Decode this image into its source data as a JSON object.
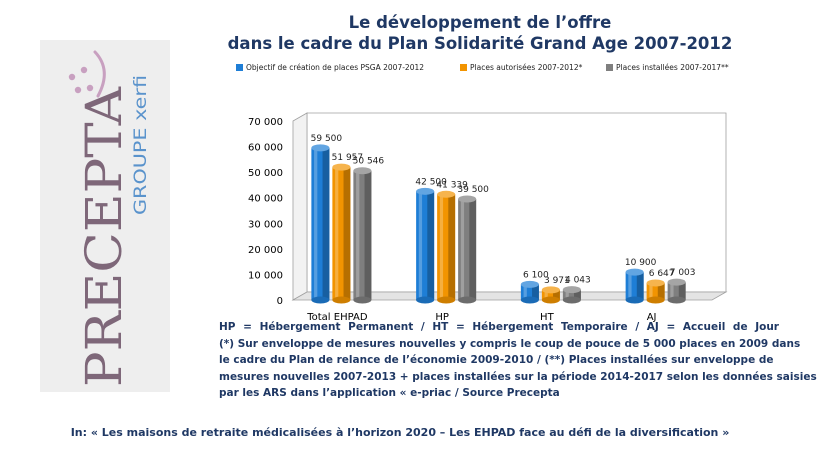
{
  "logo": {
    "brand_text": "PRECEPTA",
    "group_text": "GROUPE xerfi"
  },
  "title_lines": [
    "Le développement de l’offre",
    "dans le cadre du Plan Solidarité Grand Age 2007-2012"
  ],
  "chart_data": {
    "type": "bar",
    "categories": [
      "Total EHPAD",
      "HP",
      "HT",
      "AJ"
    ],
    "series": [
      {
        "name": "Objectif de création de places PSGA 2007-2012",
        "color": "#1e7ed6",
        "values": [
          59500,
          42500,
          6100,
          10900
        ],
        "labels": [
          "59 500",
          "42 500",
          "6 100",
          "10 900"
        ]
      },
      {
        "name": "Places autorisées 2007-2012*",
        "color": "#f29400",
        "values": [
          51957,
          41339,
          3971,
          6647
        ],
        "labels": [
          "51 957",
          "41 339",
          "3 971",
          "6 647"
        ]
      },
      {
        "name": "Places installées 2007-2017**",
        "color": "#7f7f7f",
        "values": [
          50546,
          39500,
          4043,
          7003
        ],
        "labels": [
          "50 546",
          "39 500",
          "4 043",
          "7 003"
        ]
      }
    ],
    "ylim": [
      0,
      70000
    ],
    "yticks": [
      0,
      10000,
      20000,
      30000,
      40000,
      50000,
      60000,
      70000
    ],
    "ytick_labels": [
      "0",
      "10 000",
      "20 000",
      "30 000",
      "40 000",
      "50 000",
      "60 000",
      "70 000"
    ],
    "legend_position": "top",
    "grid": false
  },
  "notes": {
    "line1": "HP = Hébergement Permanent / HT = Hébergement Temporaire / AJ = Accueil de Jour",
    "line2": "(*) Sur enveloppe de mesures nouvelles  y compris le coup de pouce de 5 000 places en 2009 dans",
    "line3": "le cadre du Plan de relance de l’économie 2009-2010  / (**) Places installées sur enveloppe de",
    "line4": "mesures nouvelles 2007-2013 + places installées sur la période 2014-2017 selon les données saisies",
    "line5": "par les ARS dans l’application « e-priac / Source Precepta"
  },
  "caption": "In: « Les maisons de retraite médicalisées à l’horizon 2020 – Les EHPAD face au défi de la diversification »"
}
